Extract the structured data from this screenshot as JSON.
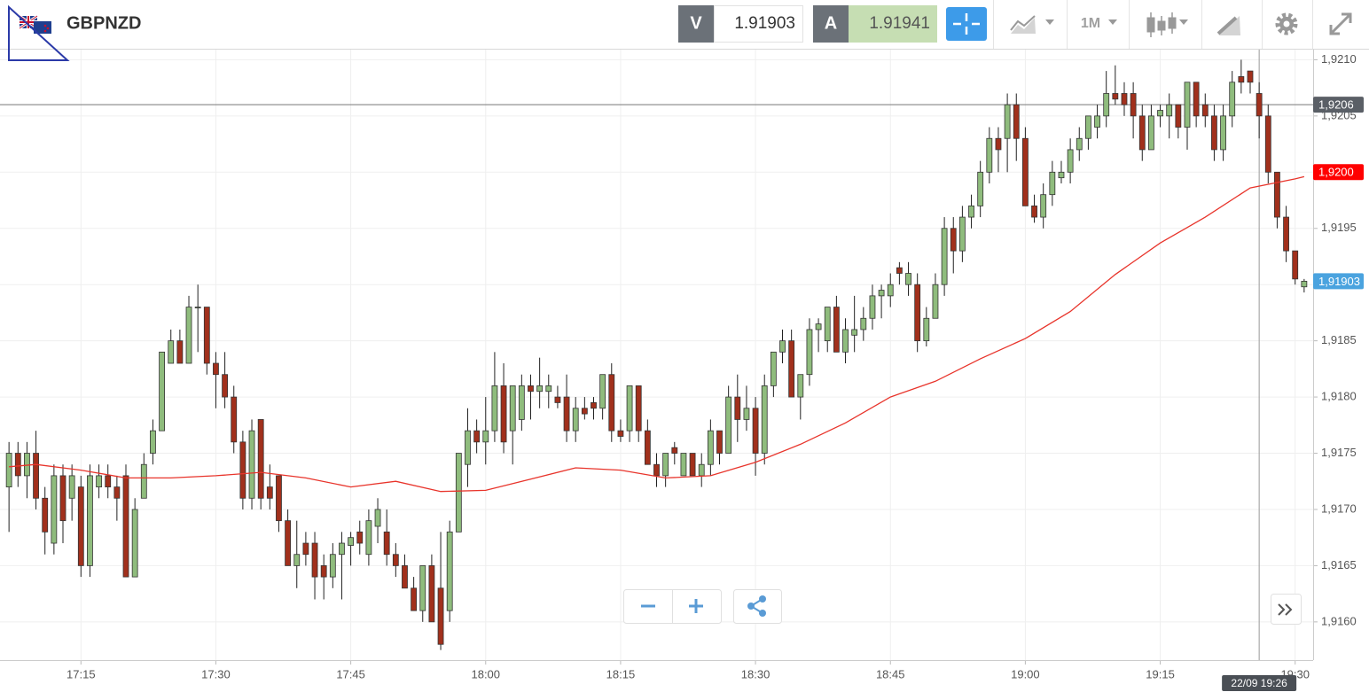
{
  "header": {
    "symbol": "GBPNZD",
    "bid_label": "V",
    "bid": 1.91903,
    "ask_label": "A",
    "ask": 1.91941,
    "timeframe": "1M"
  },
  "chart_data": {
    "type": "candlestick",
    "up_color": "#8fbc7d",
    "down_color": "#a1301c",
    "grid": true,
    "x": [
      "17:07",
      "17:08",
      "17:09",
      "17:10",
      "17:11",
      "17:12",
      "17:13",
      "17:14",
      "17:15",
      "17:16",
      "17:17",
      "17:18",
      "17:19",
      "17:20",
      "17:21",
      "17:22",
      "17:23",
      "17:24",
      "17:25",
      "17:26",
      "17:27",
      "17:28",
      "17:29",
      "17:30",
      "17:31",
      "17:32",
      "17:33",
      "17:34",
      "17:35",
      "17:36",
      "17:37",
      "17:38",
      "17:39",
      "17:40",
      "17:41",
      "17:42",
      "17:43",
      "17:44",
      "17:45",
      "17:46",
      "17:47",
      "17:48",
      "17:49",
      "17:50",
      "17:51",
      "17:52",
      "17:53",
      "17:54",
      "17:55",
      "17:56",
      "17:57",
      "17:58",
      "17:59",
      "18:00",
      "18:01",
      "18:02",
      "18:03",
      "18:04",
      "18:05",
      "18:06",
      "18:07",
      "18:08",
      "18:09",
      "18:10",
      "18:11",
      "18:12",
      "18:13",
      "18:14",
      "18:15",
      "18:16",
      "18:17",
      "18:18",
      "18:19",
      "18:20",
      "18:21",
      "18:22",
      "18:23",
      "18:24",
      "18:25",
      "18:26",
      "18:27",
      "18:28",
      "18:29",
      "18:30",
      "18:31",
      "18:32",
      "18:33",
      "18:34",
      "18:35",
      "18:36",
      "18:37",
      "18:38",
      "18:39",
      "18:40",
      "18:41",
      "18:42",
      "18:43",
      "18:44",
      "18:45",
      "18:46",
      "18:47",
      "18:48",
      "18:49",
      "18:50",
      "18:51",
      "18:52",
      "18:53",
      "18:54",
      "18:55",
      "18:56",
      "18:57",
      "18:58",
      "18:59",
      "19:00",
      "19:01",
      "19:02",
      "19:03",
      "19:04",
      "19:05",
      "19:06",
      "19:07",
      "19:08",
      "19:09",
      "19:10",
      "19:11",
      "19:12",
      "19:13",
      "19:14",
      "19:15",
      "19:16",
      "19:17",
      "19:18",
      "19:19",
      "19:20",
      "19:21",
      "19:22",
      "19:23",
      "19:24",
      "19:25",
      "19:26",
      "19:27",
      "19:28",
      "19:29",
      "19:30",
      "19:31"
    ],
    "open": [
      1.9172,
      1.9175,
      1.9173,
      1.9175,
      1.9171,
      1.9167,
      1.9173,
      1.9171,
      1.9172,
      1.9165,
      1.9172,
      1.9173,
      1.9172,
      1.9173,
      1.9164,
      1.9171,
      1.9175,
      1.9177,
      1.9183,
      1.9185,
      1.9183,
      1.9188,
      1.9188,
      1.9183,
      1.9182,
      1.918,
      1.9176,
      1.9171,
      1.9178,
      1.9172,
      1.9173,
      1.9169,
      1.9165,
      1.9167,
      1.9167,
      1.9165,
      1.9164,
      1.9166,
      1.91668,
      1.9168,
      1.9166,
      1.91685,
      1.9168,
      1.9166,
      1.9165,
      1.9163,
      1.9161,
      1.9165,
      1.9163,
      1.9161,
      1.9168,
      1.9174,
      1.9177,
      1.9176,
      1.9177,
      1.9181,
      1.9177,
      1.9178,
      1.9181,
      1.91805,
      1.91805,
      1.918,
      1.918,
      1.9177,
      1.9179,
      1.91795,
      1.9179,
      1.9182,
      1.9177,
      1.9177,
      1.9181,
      1.9177,
      1.9174,
      1.9173,
      1.91755,
      1.9173,
      1.9175,
      1.9173,
      1.9174,
      1.9177,
      1.9175,
      1.918,
      1.9178,
      1.9179,
      1.9175,
      1.9181,
      1.9184,
      1.9185,
      1.918,
      1.9182,
      1.9186,
      1.9185,
      1.9188,
      1.9184,
      1.91855,
      1.9186,
      1.9187,
      1.9189,
      1.9189,
      1.91915,
      1.919,
      1.919,
      1.9185,
      1.9187,
      1.919,
      1.9195,
      1.9193,
      1.9196,
      1.9197,
      1.92,
      1.9203,
      1.9203,
      1.9206,
      1.9203,
      1.9197,
      1.9196,
      1.9198,
      1.91995,
      1.92,
      1.9202,
      1.9203,
      1.9204,
      1.9205,
      1.9207,
      1.9207,
      1.9207,
      1.9205,
      1.9202,
      1.9205,
      1.9205,
      1.9206,
      1.9204,
      1.9208,
      1.9206,
      1.9205,
      1.9202,
      1.9205,
      1.92085,
      1.9209,
      1.9207,
      1.9205,
      1.92,
      1.9196,
      1.9193,
      1.91898
    ],
    "high": [
      1.9176,
      1.9176,
      1.9176,
      1.9177,
      1.9172,
      1.9174,
      1.9174,
      1.9174,
      1.9173,
      1.9174,
      1.9174,
      1.9174,
      1.9173,
      1.9174,
      1.9171,
      1.9175,
      1.9178,
      1.9184,
      1.9186,
      1.9186,
      1.9189,
      1.919,
      1.9188,
      1.9184,
      1.9184,
      1.9181,
      1.9177,
      1.9178,
      1.9178,
      1.9174,
      1.9173,
      1.917,
      1.9169,
      1.9168,
      1.9168,
      1.9166,
      1.9167,
      1.9168,
      1.9168,
      1.9169,
      1.917,
      1.9171,
      1.917,
      1.9167,
      1.9166,
      1.9164,
      1.9165,
      1.9166,
      1.9168,
      1.9169,
      1.9175,
      1.9179,
      1.9178,
      1.918,
      1.9184,
      1.9183,
      1.9181,
      1.9182,
      1.9182,
      1.91835,
      1.9182,
      1.9181,
      1.9182,
      1.918,
      1.918,
      1.918,
      1.9182,
      1.9183,
      1.9178,
      1.9181,
      1.9181,
      1.9178,
      1.9175,
      1.9175,
      1.9176,
      1.9175,
      1.9175,
      1.9175,
      1.9178,
      1.9177,
      1.9181,
      1.9182,
      1.9181,
      1.918,
      1.9182,
      1.9184,
      1.9186,
      1.9186,
      1.9182,
      1.9187,
      1.9187,
      1.9188,
      1.9189,
      1.9187,
      1.9189,
      1.9188,
      1.919,
      1.919,
      1.9191,
      1.9192,
      1.9192,
      1.9191,
      1.9188,
      1.9191,
      1.9196,
      1.9196,
      1.9197,
      1.9198,
      1.9201,
      1.9204,
      1.9204,
      1.9207,
      1.9207,
      1.9204,
      1.9198,
      1.9199,
      1.9201,
      1.9201,
      1.9203,
      1.9204,
      1.9205,
      1.9206,
      1.9209,
      1.92095,
      1.9208,
      1.9208,
      1.9206,
      1.9206,
      1.9206,
      1.9207,
      1.9206,
      1.9208,
      1.9208,
      1.9207,
      1.9206,
      1.9206,
      1.9209,
      1.921,
      1.9209,
      1.9208,
      1.9206,
      1.92,
      1.9197,
      1.9193,
      1.91905
    ],
    "low": [
      1.9168,
      1.9172,
      1.9171,
      1.917,
      1.9166,
      1.9166,
      1.9167,
      1.9169,
      1.9164,
      1.9164,
      1.9171,
      1.9171,
      1.9169,
      1.9164,
      1.9164,
      1.9171,
      1.9174,
      1.9177,
      1.9183,
      1.9183,
      1.9183,
      1.9184,
      1.9182,
      1.9179,
      1.9179,
      1.9175,
      1.917,
      1.917,
      1.917,
      1.917,
      1.9168,
      1.9165,
      1.9163,
      1.9165,
      1.9162,
      1.9162,
      1.9163,
      1.9162,
      1.9165,
      1.9166,
      1.9165,
      1.9167,
      1.9165,
      1.9164,
      1.9163,
      1.9161,
      1.916,
      1.916,
      1.91575,
      1.916,
      1.9168,
      1.9172,
      1.9175,
      1.9174,
      1.9176,
      1.9175,
      1.9174,
      1.9177,
      1.9178,
      1.9179,
      1.9179,
      1.9179,
      1.9176,
      1.9176,
      1.9178,
      1.9178,
      1.9178,
      1.9176,
      1.9176,
      1.9176,
      1.9176,
      1.9174,
      1.9172,
      1.9172,
      1.9174,
      1.9173,
      1.9173,
      1.9172,
      1.9173,
      1.9174,
      1.9175,
      1.9176,
      1.9177,
      1.9173,
      1.9174,
      1.918,
      1.9183,
      1.918,
      1.9178,
      1.9181,
      1.9184,
      1.9184,
      1.9184,
      1.9183,
      1.9184,
      1.9185,
      1.9186,
      1.9187,
      1.9188,
      1.919,
      1.9189,
      1.9184,
      1.91845,
      1.9187,
      1.9189,
      1.9191,
      1.9192,
      1.9195,
      1.9196,
      1.9199,
      1.92,
      1.92,
      1.9201,
      1.9197,
      1.91955,
      1.9195,
      1.9197,
      1.9199,
      1.9199,
      1.9201,
      1.9202,
      1.9203,
      1.9204,
      1.9206,
      1.9205,
      1.9203,
      1.9201,
      1.9202,
      1.9204,
      1.9203,
      1.9203,
      1.9202,
      1.9204,
      1.9204,
      1.9201,
      1.9201,
      1.9204,
      1.9207,
      1.9207,
      1.9203,
      1.9199,
      1.9195,
      1.9192,
      1.919,
      1.91893
    ],
    "close": [
      1.9175,
      1.9173,
      1.9175,
      1.9171,
      1.9168,
      1.9173,
      1.9169,
      1.9173,
      1.9165,
      1.9173,
      1.9173,
      1.9172,
      1.9171,
      1.9164,
      1.917,
      1.9174,
      1.9177,
      1.9184,
      1.9185,
      1.9183,
      1.9188,
      1.9188,
      1.9183,
      1.9182,
      1.918,
      1.9176,
      1.9171,
      1.9177,
      1.9171,
      1.9171,
      1.9169,
      1.9165,
      1.9166,
      1.9166,
      1.9164,
      1.9164,
      1.9166,
      1.9167,
      1.91675,
      1.9167,
      1.9169,
      1.917,
      1.9166,
      1.9165,
      1.9163,
      1.9161,
      1.9165,
      1.916,
      1.9158,
      1.9168,
      1.9175,
      1.9177,
      1.9176,
      1.9177,
      1.9181,
      1.9176,
      1.9181,
      1.9181,
      1.91805,
      1.9181,
      1.9181,
      1.91795,
      1.9177,
      1.9179,
      1.91785,
      1.9179,
      1.9182,
      1.9177,
      1.91765,
      1.9181,
      1.9177,
      1.9174,
      1.9173,
      1.9175,
      1.9175,
      1.9175,
      1.9173,
      1.9174,
      1.9177,
      1.9175,
      1.918,
      1.9178,
      1.9179,
      1.9175,
      1.9181,
      1.9184,
      1.9185,
      1.918,
      1.9182,
      1.9186,
      1.91865,
      1.9188,
      1.9184,
      1.9186,
      1.9186,
      1.9187,
      1.9189,
      1.91895,
      1.919,
      1.9191,
      1.9191,
      1.9185,
      1.9187,
      1.919,
      1.9195,
      1.9193,
      1.9196,
      1.9197,
      1.92,
      1.9203,
      1.9202,
      1.9206,
      1.9203,
      1.9197,
      1.9196,
      1.9198,
      1.92,
      1.92,
      1.9202,
      1.9203,
      1.9205,
      1.9205,
      1.9207,
      1.92065,
      1.9206,
      1.9205,
      1.9202,
      1.9205,
      1.92055,
      1.9206,
      1.9204,
      1.9208,
      1.9205,
      1.9205,
      1.9202,
      1.9205,
      1.9208,
      1.9208,
      1.9208,
      1.9205,
      1.92,
      1.9196,
      1.9193,
      1.91905,
      1.91903
    ],
    "ma": {
      "color": "#e8342b",
      "x": [
        "17:07",
        "17:10",
        "17:15",
        "17:20",
        "17:25",
        "17:30",
        "17:35",
        "17:40",
        "17:45",
        "17:50",
        "17:55",
        "18:00",
        "18:05",
        "18:10",
        "18:15",
        "18:20",
        "18:25",
        "18:30",
        "18:35",
        "18:40",
        "18:45",
        "18:50",
        "18:55",
        "19:00",
        "19:05",
        "19:10",
        "19:15",
        "19:20",
        "19:25",
        "19:30",
        "19:31"
      ],
      "values": [
        1.91738,
        1.9174,
        1.91735,
        1.91728,
        1.91728,
        1.9173,
        1.91733,
        1.91728,
        1.9172,
        1.91725,
        1.91716,
        1.91717,
        1.91727,
        1.91737,
        1.91735,
        1.91728,
        1.9173,
        1.91742,
        1.91758,
        1.91777,
        1.918,
        1.91814,
        1.91834,
        1.91852,
        1.91876,
        1.91909,
        1.91937,
        1.9196,
        1.91986,
        1.91994,
        1.91996
      ]
    },
    "xlim": [
      "17:06",
      "19:32"
    ],
    "xticks": [
      "17:15",
      "17:30",
      "17:45",
      "18:00",
      "18:15",
      "18:30",
      "18:45",
      "19:00",
      "19:15",
      "19:30"
    ],
    "ylim": [
      1.91566,
      1.92109
    ],
    "yticks": [
      {
        "value": 1.916,
        "label": "1,9160"
      },
      {
        "value": 1.9165,
        "label": "1,9165"
      },
      {
        "value": 1.917,
        "label": "1,9170"
      },
      {
        "value": 1.9175,
        "label": "1,9175"
      },
      {
        "value": 1.918,
        "label": "1,9180"
      },
      {
        "value": 1.9185,
        "label": "1,9185"
      },
      {
        "value": 1.919,
        "label": "1,9190"
      },
      {
        "value": 1.9195,
        "label": "1,9195"
      },
      {
        "value": 1.92,
        "label": "1,9200"
      },
      {
        "value": 1.9205,
        "label": "1,9205"
      },
      {
        "value": 1.921,
        "label": "1,9210"
      }
    ],
    "price_tags": [
      {
        "value": 1.9206,
        "label": "1,9206",
        "color": "#5a5f66",
        "line": true
      },
      {
        "value": 1.92,
        "label": "1,9200",
        "color": "#ff0000",
        "line": false
      },
      {
        "value": 1.91903,
        "label": "1,91903",
        "color": "#4aa3df",
        "line": false
      }
    ],
    "crosshair": {
      "x": "19:26",
      "label": "22/09 19:26"
    }
  }
}
